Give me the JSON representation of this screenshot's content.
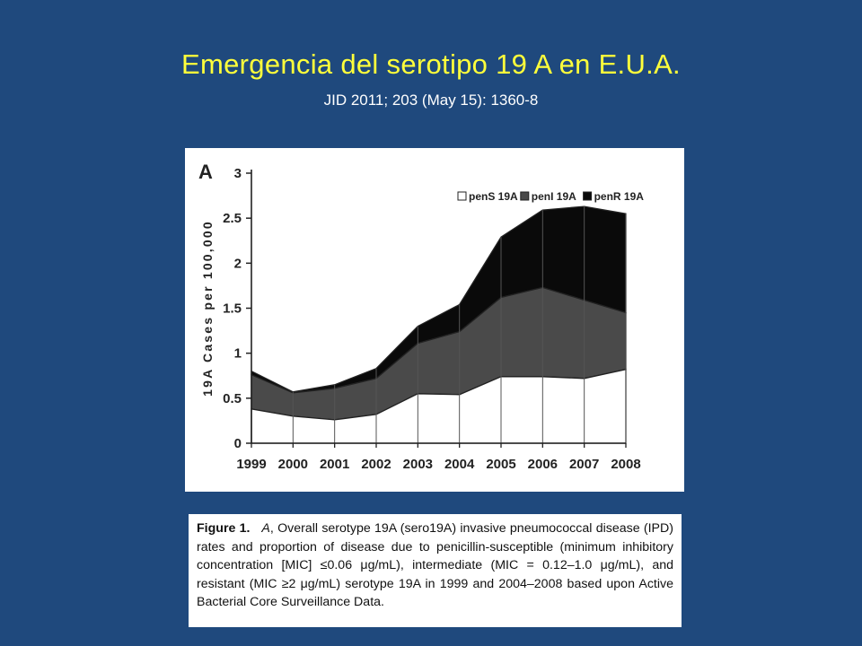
{
  "slide": {
    "title": "Emergencia del serotipo 19 A en E.U.A.",
    "subtitle": "JID 2011; 203 (May 15): 1360-8"
  },
  "caption": {
    "label": "Figure 1.",
    "panel": "A",
    "body": ", Overall serotype 19A (sero19A) invasive pneumococcal disease (IPD) rates and proportion of disease due to penicillin-susceptible (minimum inhibitory concentration [MIC] ≤0.06 μg/mL), intermediate (MIC = 0.12–1.0 μg/mL), and resistant (MIC ≥2 μg/mL) serotype 19A in 1999 and 2004–2008 based upon Active Bacterial Core Surveillance Data."
  },
  "chart_data": {
    "type": "area",
    "stacked": true,
    "panel_label": "A",
    "title": "",
    "xlabel": "",
    "ylabel": "19A Cases per 100,000",
    "ylim": [
      0,
      3
    ],
    "yticks": [
      "0",
      "0.5",
      "1",
      "1.5",
      "2",
      "2.5",
      "3"
    ],
    "x": [
      "1999",
      "2000",
      "2001",
      "2002",
      "2003",
      "2004",
      "2005",
      "2006",
      "2007",
      "2008"
    ],
    "series": [
      {
        "name": "penS 19A",
        "color": "#ffffff",
        "values": [
          0.38,
          0.3,
          0.26,
          0.32,
          0.55,
          0.54,
          0.74,
          0.74,
          0.72,
          0.82
        ]
      },
      {
        "name": "penI 19A",
        "color": "#4a4a4a",
        "values": [
          0.38,
          0.26,
          0.35,
          0.4,
          0.56,
          0.7,
          0.88,
          0.99,
          0.87,
          0.63
        ]
      },
      {
        "name": "penR 19A",
        "color": "#0a0a0a",
        "values": [
          0.04,
          0.01,
          0.04,
          0.11,
          0.19,
          0.3,
          0.67,
          0.86,
          1.04,
          1.1
        ]
      }
    ],
    "legend_position": "top-right",
    "grid": false
  }
}
